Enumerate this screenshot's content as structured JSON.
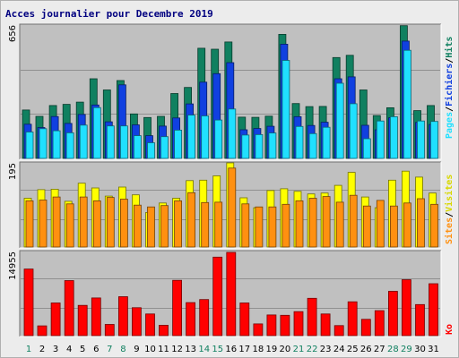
{
  "chart_data": [
    {
      "type": "bar",
      "title": "Acces journalier pour Decembre 2019",
      "ymax_label": "656",
      "categories": [
        "1",
        "2",
        "3",
        "4",
        "5",
        "6",
        "7",
        "8",
        "9",
        "10",
        "11",
        "12",
        "13",
        "14",
        "15",
        "16",
        "17",
        "18",
        "19",
        "20",
        "21",
        "22",
        "23",
        "24",
        "25",
        "26",
        "27",
        "28",
        "29",
        "30",
        "31"
      ],
      "weekend_days": [
        "1",
        "7",
        "8",
        "14",
        "15",
        "21",
        "22",
        "28",
        "29"
      ],
      "legend": [
        "Pages",
        "Fichiers",
        "Hits"
      ],
      "legend_separator": "/",
      "series": [
        {
          "name": "Hits",
          "color": "#108060",
          "values": [
            238,
            207,
            260,
            266,
            277,
            392,
            337,
            383,
            219,
            201,
            207,
            319,
            349,
            542,
            537,
            573,
            203,
            202,
            208,
            610,
            270,
            255,
            256,
            496,
            507,
            337,
            211,
            249,
            653,
            235,
            260
          ]
        },
        {
          "name": "Fichiers",
          "color": "#1040e0",
          "values": [
            168,
            152,
            206,
            172,
            216,
            263,
            180,
            362,
            165,
            112,
            159,
            199,
            268,
            375,
            417,
            471,
            141,
            147,
            158,
            562,
            205,
            162,
            178,
            392,
            401,
            163,
            141,
            200,
            577,
            177,
            167
          ]
        },
        {
          "name": "Pages",
          "color": "#20e0ff",
          "values": [
            130,
            146,
            136,
            126,
            164,
            250,
            160,
            160,
            112,
            77,
            107,
            139,
            213,
            209,
            189,
            243,
            115,
            117,
            125,
            482,
            157,
            122,
            153,
            370,
            269,
            97,
            184,
            205,
            532,
            184,
            182
          ]
        }
      ]
    },
    {
      "type": "bar",
      "ymax_label": "195",
      "categories": [
        "1",
        "2",
        "3",
        "4",
        "5",
        "6",
        "7",
        "8",
        "9",
        "10",
        "11",
        "12",
        "13",
        "14",
        "15",
        "16",
        "17",
        "18",
        "19",
        "20",
        "21",
        "22",
        "23",
        "24",
        "25",
        "26",
        "27",
        "28",
        "29",
        "30",
        "31"
      ],
      "legend": [
        "Sites",
        "Visites"
      ],
      "legend_separator": "/",
      "series": [
        {
          "name": "Visites",
          "color": "#ffff00",
          "values": [
            113,
            133,
            134,
            106,
            148,
            137,
            118,
            139,
            121,
            80,
            102,
            113,
            154,
            155,
            165,
            195,
            114,
            91,
            131,
            135,
            129,
            123,
            125,
            143,
            173,
            116,
            91,
            155,
            176,
            162,
            125
          ]
        },
        {
          "name": "Sites",
          "color": "#ff9010",
          "values": [
            107,
            109,
            116,
            100,
            116,
            107,
            115,
            111,
            97,
            93,
            96,
            107,
            126,
            103,
            104,
            183,
            100,
            93,
            93,
            99,
            107,
            113,
            117,
            104,
            120,
            95,
            108,
            95,
            102,
            112,
            99
          ]
        }
      ]
    },
    {
      "type": "bar",
      "ymax_label": "14955",
      "categories": [
        "1",
        "2",
        "3",
        "4",
        "5",
        "6",
        "7",
        "8",
        "9",
        "10",
        "11",
        "12",
        "13",
        "14",
        "15",
        "16",
        "17",
        "18",
        "19",
        "20",
        "21",
        "22",
        "23",
        "24",
        "25",
        "26",
        "27",
        "28",
        "29",
        "30",
        "31"
      ],
      "legend": [
        "Ko"
      ],
      "series": [
        {
          "name": "Ko",
          "color": "#ff0000",
          "values": [
            11840,
            1730,
            5810,
            9780,
            5380,
            6700,
            1990,
            6920,
            4960,
            3850,
            1840,
            9840,
            5870,
            6410,
            13960,
            14800,
            5800,
            2080,
            3670,
            3610,
            4270,
            6630,
            3850,
            1780,
            6020,
            2890,
            4440,
            7870,
            9950,
            5520,
            9220
          ]
        }
      ]
    }
  ]
}
